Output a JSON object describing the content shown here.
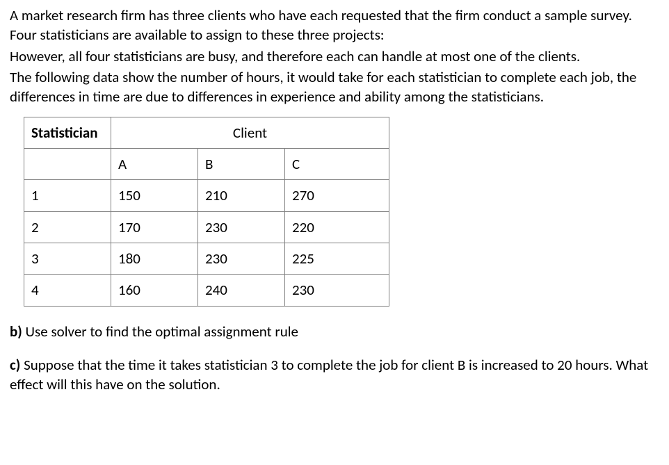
{
  "intro": {
    "p1": "A market research firm has three clients who have each requested that the firm conduct a sample survey. Four statisticians are available to assign to these three projects:",
    "p2": "However, all four statisticians are busy, and therefore each can handle at most one of the clients.",
    "p3": "The following data show the number of hours, it would take for each statistician to complete each job, the differences in time are due to differences in experience and ability among the statisticians."
  },
  "table": {
    "header_statistician": "Statistician",
    "header_client": "Client",
    "columns": {
      "a": "A",
      "b": "B",
      "c": "C"
    },
    "rows": [
      {
        "id": "1",
        "a": "150",
        "b": "210",
        "c": "270"
      },
      {
        "id": "2",
        "a": "170",
        "b": "230",
        "c": "220"
      },
      {
        "id": "3",
        "a": "180",
        "b": "230",
        "c": "225"
      },
      {
        "id": "4",
        "a": "160",
        "b": "240",
        "c": "230"
      }
    ],
    "border_color": "#808080",
    "cell_fontsize": 21
  },
  "questions": {
    "b_label": "b)",
    "b_text": " Use solver to find the optimal assignment rule",
    "c_label": "c)",
    "c_text": " Suppose that the time it takes statistician 3 to complete the job for client B is increased to 20 hours. What effect will this have on the solution."
  },
  "style": {
    "background_color": "#ffffff",
    "text_color": "#000000",
    "font_family": "Calibri, Arial, sans-serif",
    "font_size_pt": 16
  }
}
